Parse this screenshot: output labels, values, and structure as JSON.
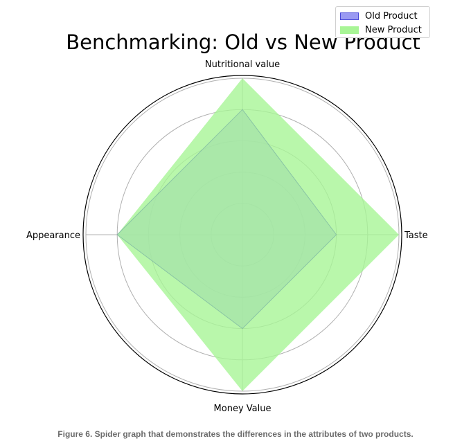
{
  "chart_data": {
    "type": "radar",
    "title": "Benchmarking: Old vs New Product",
    "categories": [
      "Taste",
      "Nutritional value",
      "Appearance",
      "Money Value"
    ],
    "rlim": [
      0,
      5
    ],
    "rgrid": [
      1,
      2,
      3,
      4,
      5
    ],
    "grid": true,
    "legend_position": "top-right",
    "series": [
      {
        "name": "Old Product",
        "values": [
          3,
          4,
          4,
          3
        ],
        "color": "#4a4ad8",
        "fill": "#9a9af2"
      },
      {
        "name": "New Product",
        "values": [
          5,
          5,
          4,
          5
        ],
        "color": "#7cec5a",
        "fill": "#a8f596"
      }
    ]
  },
  "caption": "Figure 6. Spider graph that demonstrates the differences in the attributes of two products."
}
